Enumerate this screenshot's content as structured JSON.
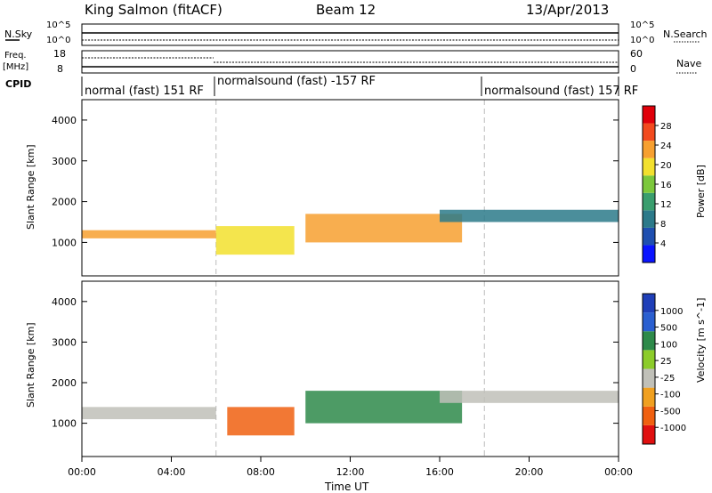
{
  "header": {
    "station": "King Salmon (fitACF)",
    "beam": "Beam 12",
    "date": "13/Apr/2013"
  },
  "noise_panel": {
    "left_label": "N.Sky",
    "right_label": "N.Search",
    "ticks_left": [
      "10^5",
      "10^0"
    ],
    "ticks_right": [
      "10^5",
      "10^0"
    ]
  },
  "freq_panel": {
    "left_label": "Freq.",
    "left_unit": "[MHz]",
    "right_label": "Nave",
    "ticks_left": [
      "18",
      "8"
    ],
    "ticks_right": [
      "60",
      "0"
    ]
  },
  "cpid_panel": {
    "label": "CPID",
    "segments": [
      {
        "text": "normal (fast) 151 RF",
        "start_hour": 0,
        "end_hour": 6
      },
      {
        "text": "normalsound (fast) -157 RF",
        "start_hour": 6,
        "end_hour": 18
      },
      {
        "text": "normalsound (fast) 157 RF",
        "start_hour": 18,
        "end_hour": 24
      }
    ]
  },
  "chart_data": [
    {
      "type": "heatmap",
      "title": "",
      "ylabel": "Slant Range [km]",
      "xlabel": "",
      "xlim": [
        "00:00",
        "24:00"
      ],
      "ylim": [
        180,
        4500
      ],
      "y_ticks": [
        "1000",
        "2000",
        "3000",
        "4000"
      ],
      "colorbar": {
        "label": "Power [dB]",
        "ticks": [
          "4",
          "8",
          "12",
          "16",
          "20",
          "24",
          "28"
        ],
        "range": [
          0,
          30
        ],
        "colors": [
          "#0a14ff",
          "#1f4fb0",
          "#2c7a8a",
          "#3a9e6e",
          "#7cc83c",
          "#f2e02e",
          "#f7a030",
          "#f24a1e",
          "#e0000a"
        ]
      },
      "features": [
        {
          "name": "main band",
          "start_hour": 0,
          "end_hour": 6,
          "range_km": [
            1100,
            1300
          ],
          "level_db": 22
        },
        {
          "name": "rising arc",
          "start_hour": 6,
          "end_hour": 9.5,
          "range_km": [
            700,
            1400
          ],
          "level_db": 18
        },
        {
          "name": "noon echoes",
          "start_hour": 10,
          "end_hour": 17,
          "range_km": [
            1000,
            1700
          ],
          "level_db": 20
        },
        {
          "name": "evening band",
          "start_hour": 16,
          "end_hour": 24,
          "range_km": [
            1500,
            1800
          ],
          "level_db": 8
        }
      ]
    },
    {
      "type": "heatmap",
      "title": "",
      "ylabel": "Slant Range [km]",
      "xlabel": "Time UT",
      "x_ticks": [
        "00:00",
        "04:00",
        "08:00",
        "12:00",
        "16:00",
        "20:00",
        "00:00"
      ],
      "xlim": [
        "00:00",
        "24:00"
      ],
      "ylim": [
        180,
        4500
      ],
      "y_ticks": [
        "1000",
        "2000",
        "3000",
        "4000"
      ],
      "colorbar": {
        "label": "Velocity [m s^-1]",
        "ticks": [
          "1000",
          "500",
          "100",
          "25",
          "-25",
          "-100",
          "-500",
          "-1000"
        ],
        "colors": [
          "#1f3fb8",
          "#2a5fd0",
          "#2e8a4a",
          "#8ccc2a",
          "#c0c0b8",
          "#f0a020",
          "#f06010",
          "#e01010"
        ]
      },
      "features": [
        {
          "name": "ground scatter band",
          "start_hour": 0,
          "end_hour": 6,
          "range_km": [
            1100,
            1400
          ],
          "velocity": 0
        },
        {
          "name": "negative arc",
          "start_hour": 6.5,
          "end_hour": 9.5,
          "range_km": [
            700,
            1400
          ],
          "velocity": -300
        },
        {
          "name": "positive patch",
          "start_hour": 10,
          "end_hour": 17,
          "range_km": [
            1000,
            1800
          ],
          "velocity": 200
        },
        {
          "name": "evening ground scatter",
          "start_hour": 16,
          "end_hour": 24,
          "range_km": [
            1500,
            1800
          ],
          "velocity": 0
        }
      ]
    }
  ]
}
